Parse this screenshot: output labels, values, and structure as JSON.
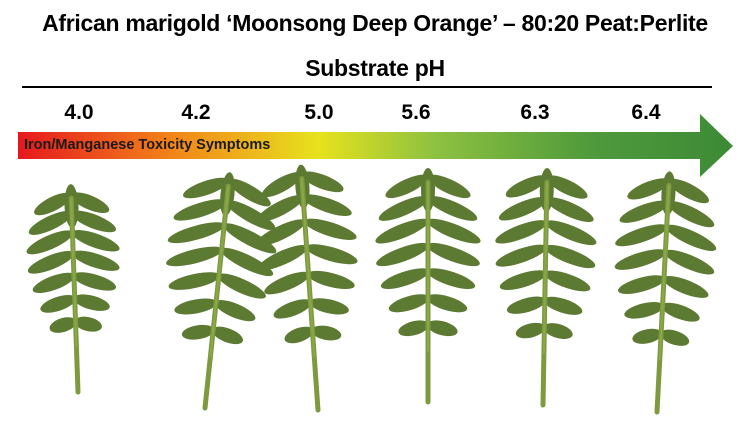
{
  "title": {
    "line1": "African marigold ‘Moonsong Deep Orange’ – 80:20 Peat:Perlite",
    "line2": "Substrate pH"
  },
  "ph_values": [
    "4.0",
    "4.2",
    "5.0",
    "5.6",
    "6.3",
    "6.4"
  ],
  "arrow": {
    "label": "Iron/Manganese Toxicity Symptoms",
    "gradient_colors": [
      "#e6181e",
      "#f2861a",
      "#e7e21d",
      "#8fc240",
      "#4f9a3c",
      "#3d8a36"
    ]
  },
  "leaf_colors": {
    "fill": "#5d7a33",
    "stem": "#7e9a3e",
    "vein": "#8aa84a"
  },
  "leaves": [
    {
      "ph": "4.0"
    },
    {
      "ph": "4.2"
    },
    {
      "ph": "5.0"
    },
    {
      "ph": "5.6"
    },
    {
      "ph": "6.3"
    },
    {
      "ph": "6.4"
    }
  ]
}
